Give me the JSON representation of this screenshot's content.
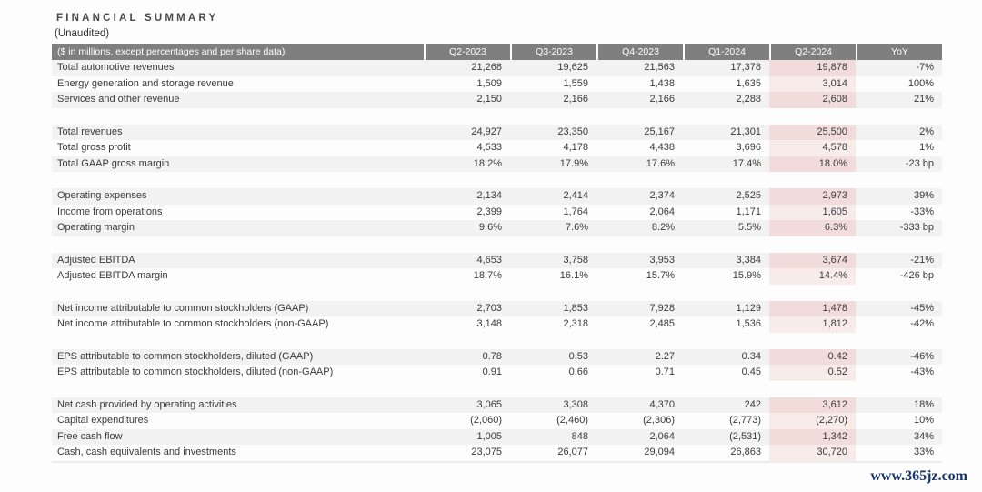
{
  "page": {
    "title": "F I N A N C I A L   S U M M A R Y",
    "title_plain": "FINANCIAL SUMMARY",
    "subtitle": "(Unaudited)",
    "watermark": "www.365jz.com"
  },
  "table": {
    "header_label": "($ in millions, except percentages and per share data)",
    "columns": [
      "Q2-2023",
      "Q3-2023",
      "Q4-2023",
      "Q1-2024",
      "Q2-2024",
      "YoY"
    ],
    "highlight_column": "Q2-2024",
    "highlight_index": 4,
    "colors": {
      "header_bg": "#7f7f7f",
      "header_text": "#ffffff",
      "stripe": "#f2f2f2",
      "highlight_on_stripe": "#f2dcdb",
      "highlight_on_white": "#f8eceb",
      "watermark": "#16356e",
      "text": "#3a3a3a"
    },
    "sections": [
      {
        "rows": [
          {
            "label": "Total automotive revenues",
            "values": [
              "21,268",
              "19,625",
              "21,563",
              "17,378",
              "19,878",
              "-7%"
            ]
          },
          {
            "label": "Energy generation and storage revenue",
            "values": [
              "1,509",
              "1,559",
              "1,438",
              "1,635",
              "3,014",
              "100%"
            ]
          },
          {
            "label": "Services and other revenue",
            "values": [
              "2,150",
              "2,166",
              "2,166",
              "2,288",
              "2,608",
              "21%"
            ]
          }
        ]
      },
      {
        "rows": [
          {
            "label": "Total revenues",
            "values": [
              "24,927",
              "23,350",
              "25,167",
              "21,301",
              "25,500",
              "2%"
            ]
          },
          {
            "label": "Total gross profit",
            "values": [
              "4,533",
              "4,178",
              "4,438",
              "3,696",
              "4,578",
              "1%"
            ]
          },
          {
            "label": "Total GAAP gross margin",
            "values": [
              "18.2%",
              "17.9%",
              "17.6%",
              "17.4%",
              "18.0%",
              "-23 bp"
            ]
          }
        ]
      },
      {
        "rows": [
          {
            "label": "Operating expenses",
            "values": [
              "2,134",
              "2,414",
              "2,374",
              "2,525",
              "2,973",
              "39%"
            ]
          },
          {
            "label": "Income from operations",
            "values": [
              "2,399",
              "1,764",
              "2,064",
              "1,171",
              "1,605",
              "-33%"
            ]
          },
          {
            "label": "Operating margin",
            "values": [
              "9.6%",
              "7.6%",
              "8.2%",
              "5.5%",
              "6.3%",
              "-333 bp"
            ]
          }
        ]
      },
      {
        "rows": [
          {
            "label": "Adjusted EBITDA",
            "values": [
              "4,653",
              "3,758",
              "3,953",
              "3,384",
              "3,674",
              "-21%"
            ]
          },
          {
            "label": "Adjusted EBITDA margin",
            "values": [
              "18.7%",
              "16.1%",
              "15.7%",
              "15.9%",
              "14.4%",
              "-426 bp"
            ]
          }
        ]
      },
      {
        "rows": [
          {
            "label": "Net income attributable to common stockholders (GAAP)",
            "values": [
              "2,703",
              "1,853",
              "7,928",
              "1,129",
              "1,478",
              "-45%"
            ]
          },
          {
            "label": "Net income attributable to common stockholders (non-GAAP)",
            "values": [
              "3,148",
              "2,318",
              "2,485",
              "1,536",
              "1,812",
              "-42%"
            ]
          }
        ]
      },
      {
        "rows": [
          {
            "label": "EPS attributable to common stockholders, diluted (GAAP)",
            "values": [
              "0.78",
              "0.53",
              "2.27",
              "0.34",
              "0.42",
              "-46%"
            ]
          },
          {
            "label": "EPS attributable to common stockholders, diluted (non-GAAP)",
            "values": [
              "0.91",
              "0.66",
              "0.71",
              "0.45",
              "0.52",
              "-43%"
            ]
          }
        ]
      },
      {
        "rows": [
          {
            "label": "Net cash provided by operating activities",
            "values": [
              "3,065",
              "3,308",
              "4,370",
              "242",
              "3,612",
              "18%"
            ]
          },
          {
            "label": "Capital expenditures",
            "values": [
              "(2,060)",
              "(2,460)",
              "(2,306)",
              "(2,773)",
              "(2,270)",
              "10%"
            ]
          },
          {
            "label": "Free cash flow",
            "values": [
              "1,005",
              "848",
              "2,064",
              "(2,531)",
              "1,342",
              "34%"
            ]
          },
          {
            "label": "Cash, cash equivalents and investments",
            "values": [
              "23,075",
              "26,077",
              "29,094",
              "26,863",
              "30,720",
              "33%"
            ]
          }
        ]
      }
    ]
  }
}
